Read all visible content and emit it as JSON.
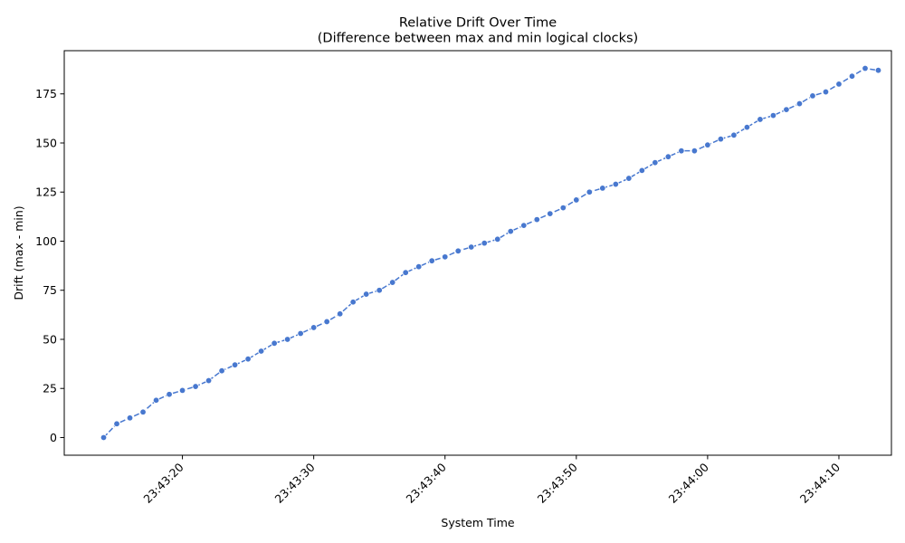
{
  "chart_data": {
    "type": "line",
    "title": "Relative Drift Over Time",
    "subtitle": "(Difference between max and min logical clocks)",
    "xlabel": "System Time",
    "ylabel": "Drift (max - min)",
    "x_unit": "time of day (HH:MM:SS)",
    "xlim": [
      "23:43:11",
      "23:44:14"
    ],
    "ylim": [
      -9,
      197
    ],
    "x_ticks": [
      "23:43:20",
      "23:43:30",
      "23:43:40",
      "23:43:50",
      "23:44:00",
      "23:44:10"
    ],
    "y_ticks": [
      0,
      25,
      50,
      75,
      100,
      125,
      150,
      175
    ],
    "grid": false,
    "line_color": "#4878cf",
    "series": [
      {
        "x": [
          "23:43:14",
          "23:43:15",
          "23:43:16",
          "23:43:17",
          "23:43:18",
          "23:43:19",
          "23:43:20",
          "23:43:21",
          "23:43:22",
          "23:43:23",
          "23:43:24",
          "23:43:25",
          "23:43:26",
          "23:43:27",
          "23:43:28",
          "23:43:29",
          "23:43:30",
          "23:43:31",
          "23:43:32",
          "23:43:33",
          "23:43:34",
          "23:43:35",
          "23:43:36",
          "23:43:37",
          "23:43:38",
          "23:43:39",
          "23:43:40",
          "23:43:41",
          "23:43:42",
          "23:43:43",
          "23:43:44",
          "23:43:45",
          "23:43:46",
          "23:43:47",
          "23:43:48",
          "23:43:49",
          "23:43:50",
          "23:43:51",
          "23:43:52",
          "23:43:53",
          "23:43:54",
          "23:43:55",
          "23:43:56",
          "23:43:57",
          "23:43:58",
          "23:43:59",
          "23:44:00",
          "23:44:01",
          "23:44:02",
          "23:44:03",
          "23:44:04",
          "23:44:05",
          "23:44:06",
          "23:44:07",
          "23:44:08",
          "23:44:09",
          "23:44:10",
          "23:44:11",
          "23:44:12",
          "23:44:13"
        ],
        "values": [
          0,
          7,
          10,
          13,
          19,
          22,
          24,
          26,
          29,
          34,
          37,
          40,
          44,
          48,
          50,
          53,
          56,
          59,
          63,
          69,
          73,
          75,
          79,
          84,
          87,
          90,
          92,
          95,
          97,
          99,
          101,
          105,
          108,
          111,
          114,
          117,
          121,
          125,
          127,
          129,
          132,
          136,
          140,
          143,
          146,
          146,
          149,
          152,
          154,
          158,
          162,
          164,
          167,
          170,
          174,
          176,
          180,
          184,
          188,
          187
        ]
      }
    ]
  }
}
